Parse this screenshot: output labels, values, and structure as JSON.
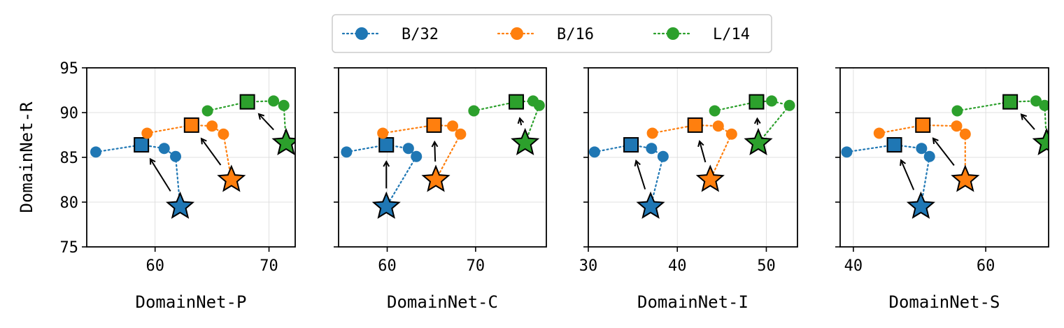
{
  "colors": {
    "b32": "#1f77b4",
    "b16": "#ff7f0e",
    "l14": "#2ca02c"
  },
  "legend": [
    {
      "label": "B/32",
      "color": "#1f77b4"
    },
    {
      "label": "B/16",
      "color": "#ff7f0e"
    },
    {
      "label": "L/14",
      "color": "#2ca02c"
    }
  ],
  "chart_data": [
    {
      "type": "scatter",
      "xlabel": "DomainNet-P",
      "ylabel": "DomainNet-R",
      "xlim": [
        54,
        72.3
      ],
      "ylim": [
        75,
        95
      ],
      "xticks": [
        60,
        70
      ],
      "yticks": [
        75,
        80,
        85,
        90,
        95
      ],
      "series": [
        {
          "name": "B/32",
          "color": "#1f77b4",
          "x": [
            54.8,
            58.8,
            60.8,
            61.8
          ],
          "y": [
            85.6,
            86.4,
            86.0,
            85.1
          ],
          "square": [
            58.8,
            86.4
          ],
          "star": [
            62.2,
            79.5
          ]
        },
        {
          "name": "B/16",
          "color": "#ff7f0e",
          "x": [
            59.3,
            63.2,
            65.0,
            66.0
          ],
          "y": [
            87.7,
            88.6,
            88.5,
            87.6
          ],
          "square": [
            63.2,
            88.6
          ],
          "star": [
            66.7,
            82.5
          ]
        },
        {
          "name": "L/14",
          "color": "#2ca02c",
          "x": [
            64.6,
            68.1,
            70.4,
            71.3
          ],
          "y": [
            90.2,
            91.2,
            91.3,
            90.8
          ],
          "square": [
            68.1,
            91.2
          ],
          "star": [
            71.5,
            86.6
          ]
        }
      ]
    },
    {
      "type": "scatter",
      "xlabel": "DomainNet-C",
      "ylabel": "",
      "xlim": [
        54.5,
        78
      ],
      "ylim": [
        75,
        95
      ],
      "xticks": [
        60,
        70
      ],
      "yticks": [
        75,
        80,
        85,
        90,
        95
      ],
      "series": [
        {
          "name": "B/32",
          "color": "#1f77b4",
          "x": [
            55.4,
            59.9,
            62.4,
            63.3
          ],
          "y": [
            85.6,
            86.4,
            86.0,
            85.1
          ],
          "square": [
            59.9,
            86.4
          ],
          "star": [
            59.9,
            79.5
          ]
        },
        {
          "name": "B/16",
          "color": "#ff7f0e",
          "x": [
            59.5,
            65.3,
            67.4,
            68.3
          ],
          "y": [
            87.7,
            88.6,
            88.5,
            87.6
          ],
          "square": [
            65.3,
            88.6
          ],
          "star": [
            65.5,
            82.5
          ]
        },
        {
          "name": "L/14",
          "color": "#2ca02c",
          "x": [
            69.8,
            74.6,
            76.5,
            77.2
          ],
          "y": [
            90.2,
            91.2,
            91.3,
            90.8
          ],
          "square": [
            74.6,
            91.2
          ],
          "star": [
            75.6,
            86.6
          ]
        }
      ]
    },
    {
      "type": "scatter",
      "xlabel": "DomainNet-I",
      "ylabel": "",
      "xlim": [
        30,
        53.5
      ],
      "ylim": [
        75,
        95
      ],
      "xticks": [
        30,
        40,
        50
      ],
      "yticks": [
        75,
        80,
        85,
        90,
        95
      ],
      "series": [
        {
          "name": "B/32",
          "color": "#1f77b4",
          "x": [
            30.7,
            34.8,
            37.1,
            38.4
          ],
          "y": [
            85.6,
            86.4,
            86.0,
            85.1
          ],
          "square": [
            34.8,
            86.4
          ],
          "star": [
            37.0,
            79.5
          ]
        },
        {
          "name": "B/16",
          "color": "#ff7f0e",
          "x": [
            37.2,
            42.0,
            44.6,
            46.1
          ],
          "y": [
            87.7,
            88.6,
            88.5,
            87.6
          ],
          "square": [
            42.0,
            88.6
          ],
          "star": [
            43.7,
            82.5
          ]
        },
        {
          "name": "L/14",
          "color": "#2ca02c",
          "x": [
            44.2,
            48.9,
            50.6,
            52.6
          ],
          "y": [
            90.2,
            91.2,
            91.3,
            90.8
          ],
          "square": [
            48.9,
            91.2
          ],
          "star": [
            49.1,
            86.6
          ]
        }
      ]
    },
    {
      "type": "scatter",
      "xlabel": "DomainNet-S",
      "ylabel": "",
      "xlim": [
        38,
        69.5
      ],
      "ylim": [
        75,
        95
      ],
      "xticks": [
        40,
        60
      ],
      "yticks": [
        75,
        80,
        85,
        90,
        95
      ],
      "series": [
        {
          "name": "B/32",
          "color": "#1f77b4",
          "x": [
            39.0,
            46.2,
            50.3,
            51.5
          ],
          "y": [
            85.6,
            86.4,
            86.0,
            85.1
          ],
          "square": [
            46.2,
            86.4
          ],
          "star": [
            50.2,
            79.5
          ]
        },
        {
          "name": "B/16",
          "color": "#ff7f0e",
          "x": [
            43.9,
            50.5,
            55.6,
            56.9
          ],
          "y": [
            87.7,
            88.6,
            88.5,
            87.6
          ],
          "square": [
            50.5,
            88.6
          ],
          "star": [
            56.9,
            82.5
          ]
        },
        {
          "name": "L/14",
          "color": "#2ca02c",
          "x": [
            55.7,
            63.7,
            67.6,
            68.9
          ],
          "y": [
            90.2,
            91.2,
            91.3,
            90.8
          ],
          "square": [
            63.7,
            91.2
          ],
          "star": [
            69.2,
            86.6
          ]
        }
      ]
    }
  ]
}
